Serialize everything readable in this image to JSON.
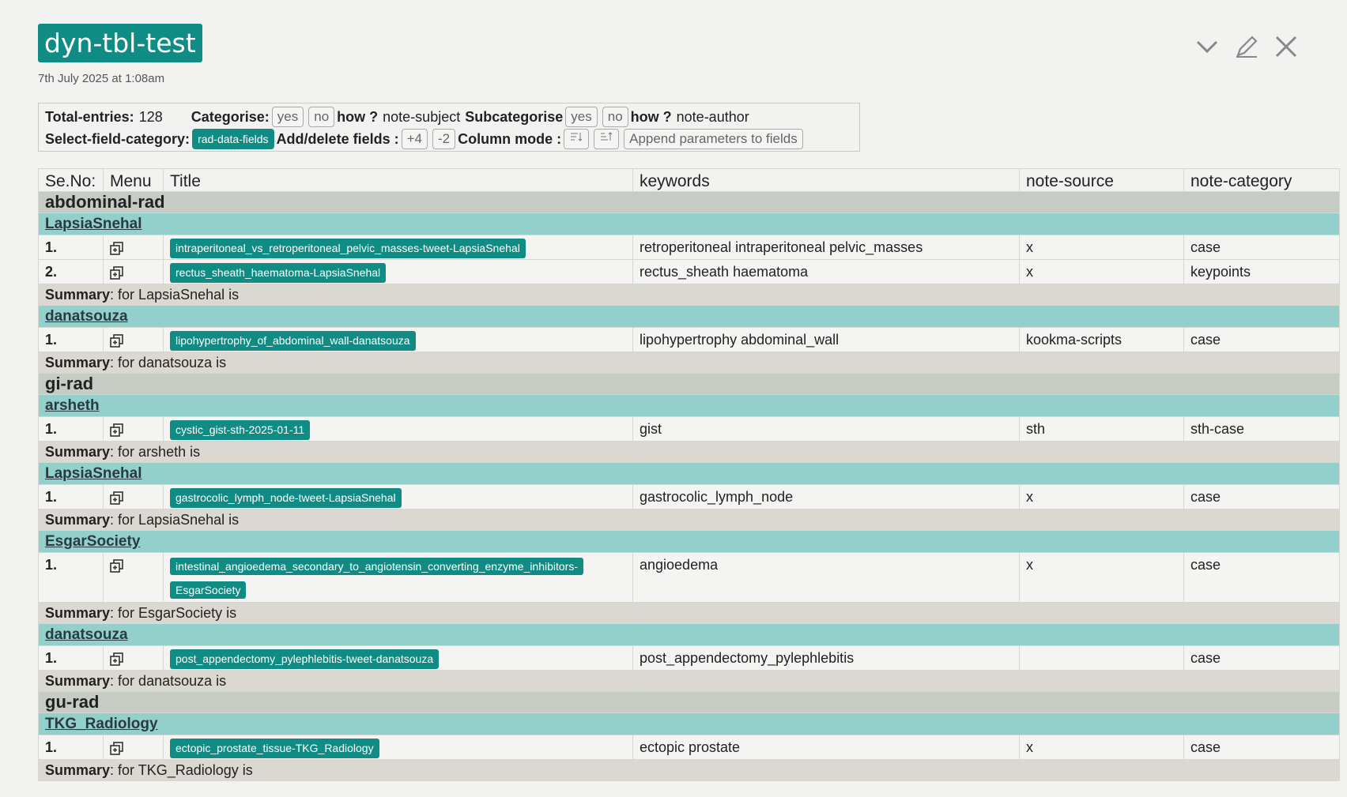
{
  "note": {
    "title": "dyn-tbl-test",
    "timestamp": "7th July 2025 at 1:08am"
  },
  "window_icons": [
    "chevron-down-icon",
    "edit-pencil-icon",
    "close-icon"
  ],
  "controls": {
    "total_label": "Total-entries:",
    "total_value": "128",
    "categorise_label": "Categorise:",
    "yes": "yes",
    "no": "no",
    "how_label": "how ?",
    "categorise_how": "note-subject",
    "subcategorise_label": "Subcategorise",
    "subcategorise_how": "note-author",
    "select_field_label": "Select-field-category:",
    "field_category": "rad-data-fields",
    "add_delete_label": "Add/delete fields :",
    "add_fields": "+4",
    "delete_fields": "-2",
    "column_mode_label": "Column mode :",
    "append_label": "Append parameters to fields"
  },
  "table": {
    "headers": [
      "Se.No:",
      "Menu",
      "Title",
      "keywords",
      "note-source",
      "note-category"
    ],
    "summary_label": "Summary",
    "rows": [
      {
        "kind": "cat",
        "label": "abdominal-rad"
      },
      {
        "kind": "sub",
        "label": "LapsiaSnehal"
      },
      {
        "kind": "entry",
        "num": "1.",
        "title": "intraperitoneal_vs_retroperitoneal_pelvic_masses-tweet-LapsiaSnehal",
        "keywords": "retroperitoneal intraperitoneal pelvic_masses",
        "source": "x",
        "category": "case"
      },
      {
        "kind": "entry",
        "num": "2.",
        "title": "rectus_sheath_haematoma-LapsiaSnehal",
        "keywords": "rectus_sheath haematoma",
        "source": "x",
        "category": "keypoints"
      },
      {
        "kind": "summary",
        "text": ": for LapsiaSnehal is"
      },
      {
        "kind": "sub",
        "label": "danatsouza"
      },
      {
        "kind": "entry",
        "num": "1.",
        "title": "lipohypertrophy_of_abdominal_wall-danatsouza",
        "keywords": "lipohypertrophy abdominal_wall",
        "source": "kookma-scripts",
        "category": "case"
      },
      {
        "kind": "summary",
        "text": ": for danatsouza is"
      },
      {
        "kind": "cat",
        "label": "gi-rad"
      },
      {
        "kind": "sub",
        "label": "arsheth"
      },
      {
        "kind": "entry",
        "num": "1.",
        "title": "cystic_gist-sth-2025-01-11",
        "keywords": "gist",
        "source": "sth",
        "category": "sth-case"
      },
      {
        "kind": "summary",
        "text": ": for arsheth is"
      },
      {
        "kind": "sub",
        "label": "LapsiaSnehal"
      },
      {
        "kind": "entry",
        "num": "1.",
        "title": "gastrocolic_lymph_node-tweet-LapsiaSnehal",
        "keywords": "gastrocolic_lymph_node",
        "source": "x",
        "category": "case"
      },
      {
        "kind": "summary",
        "text": ": for LapsiaSnehal is"
      },
      {
        "kind": "sub",
        "label": "EsgarSociety"
      },
      {
        "kind": "entry",
        "num": "1.",
        "title": "intestinal_angioedema_secondary_to_angiotensin_converting_enzyme_inhibitors-EsgarSociety",
        "keywords": "angioedema",
        "source": "x",
        "category": "case",
        "tall": true
      },
      {
        "kind": "summary",
        "text": ": for EsgarSociety is"
      },
      {
        "kind": "sub",
        "label": "danatsouza"
      },
      {
        "kind": "entry",
        "num": "1.",
        "title": "post_appendectomy_pylephlebitis-tweet-danatsouza",
        "keywords": "post_appendectomy_pylephlebitis",
        "source": "",
        "category": "case"
      },
      {
        "kind": "summary",
        "text": ": for danatsouza is"
      },
      {
        "kind": "cat",
        "label": "gu-rad"
      },
      {
        "kind": "sub",
        "label": "TKG_Radiology"
      },
      {
        "kind": "entry",
        "num": "1.",
        "title": "ectopic_prostate_tissue-TKG_Radiology",
        "keywords": "ectopic prostate",
        "source": "x",
        "category": "case"
      },
      {
        "kind": "summary",
        "text": ": for TKG_Radiology is"
      }
    ]
  }
}
